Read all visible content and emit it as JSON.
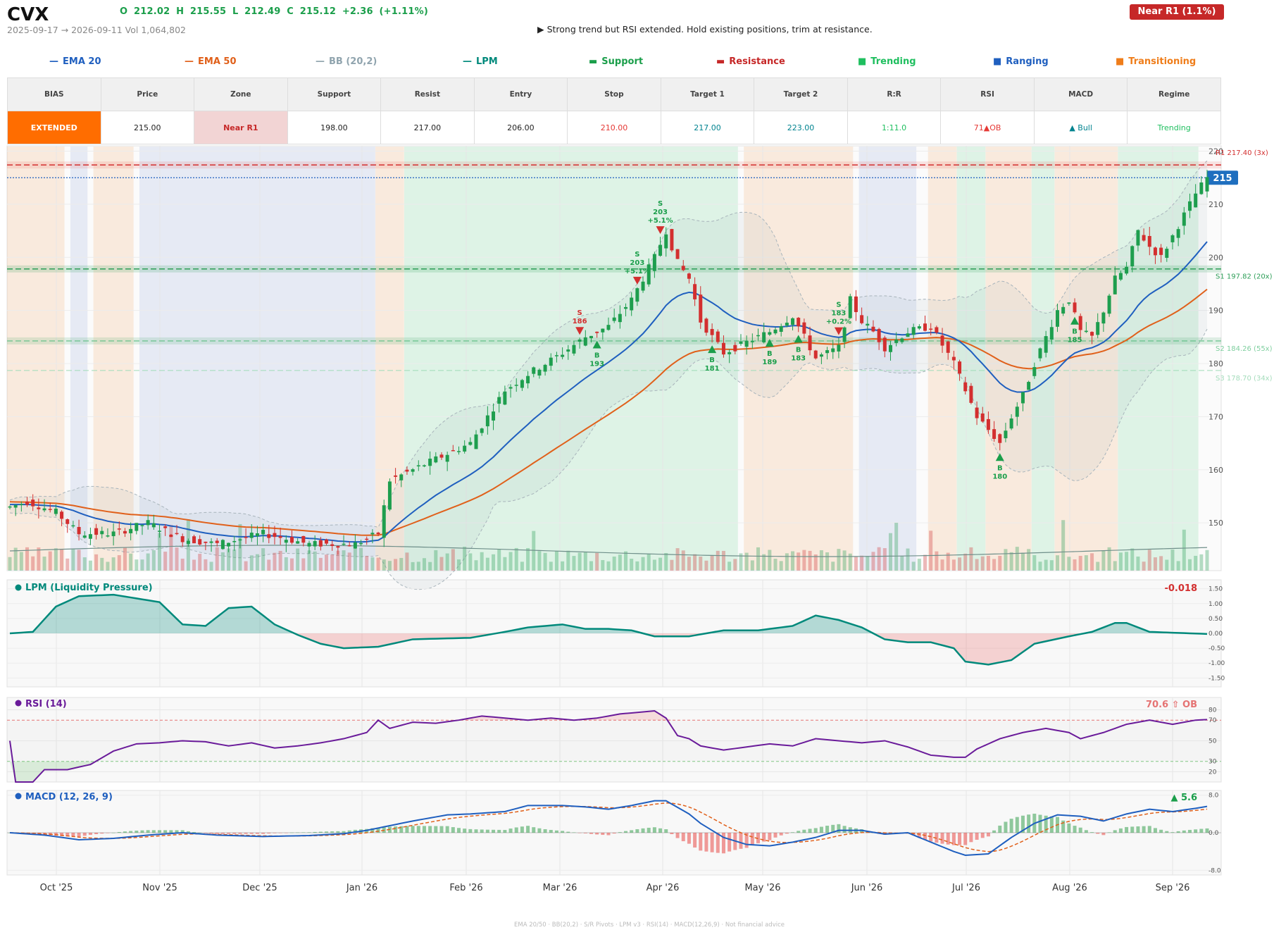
{
  "header": {
    "ticker": "CVX",
    "ohlc": "O 212.02   H 215.55   L 212.49   C 215.12   +2.36  (+1.11%)",
    "range": "2025-09-17 → 2026-09-11   Vol 1,064,802",
    "note": "▶  Strong trend but RSI extended. Hold existing positions, trim at resistance.",
    "zone_badge": "Near R1  (1.1%)"
  },
  "legend": [
    {
      "label": "EMA 20",
      "symbol": "—",
      "color": "#1f5fbf"
    },
    {
      "label": "EMA 50",
      "symbol": "—",
      "color": "#e0601a"
    },
    {
      "label": "BB (20,2)",
      "symbol": "—",
      "color": "#90a4ae"
    },
    {
      "label": "LPM",
      "symbol": "—",
      "color": "#00897b"
    },
    {
      "label": "Support",
      "symbol": "▬",
      "color": "#1a9e4a"
    },
    {
      "label": "Resistance",
      "symbol": "▬",
      "color": "#c62828"
    },
    {
      "label": "Trending",
      "symbol": "■",
      "color": "#1fbf5f"
    },
    {
      "label": "Ranging",
      "symbol": "■",
      "color": "#1f5fbf"
    },
    {
      "label": "Transitioning",
      "symbol": "■",
      "color": "#ef7d1a"
    }
  ],
  "table": {
    "headers": [
      "BIAS",
      "Price",
      "Zone",
      "Support",
      "Resist",
      "Entry",
      "Stop",
      "Target 1",
      "Target 2",
      "R:R",
      "RSI",
      "MACD",
      "Regime"
    ],
    "values": [
      "EXTENDED",
      "215.00",
      "Near R1",
      "198.00",
      "217.00",
      "206.00",
      "210.00",
      "217.00",
      "223.00",
      "1:11.0",
      "71▲OB",
      "▲ Bull",
      "Trending"
    ],
    "colors": [
      "#ffffff",
      "#222222",
      "#c62828",
      "#222222",
      "#222222",
      "#222222",
      "#e53935",
      "#00838f",
      "#00838f",
      "#1fbf5f",
      "#e53935",
      "#00838f",
      "#1fbf5f"
    ],
    "bg": [
      "#ff6d00",
      "#ffffff",
      "#f2d4d4",
      "#ffffff",
      "#ffffff",
      "#ffffff",
      "#ffffff",
      "#ffffff",
      "#ffffff",
      "#ffffff",
      "#ffffff",
      "#ffffff",
      "#ffffff"
    ]
  },
  "chart_data": {
    "type": "candlestick",
    "x_ticks": [
      "Oct '25",
      "Nov '25",
      "Dec '25",
      "Jan '26",
      "Feb '26",
      "Mar '26",
      "Apr '26",
      "May '26",
      "Jun '26",
      "Jul '26",
      "Aug '26",
      "Sep '26"
    ],
    "price": {
      "y_ticks": [
        150,
        160,
        170,
        180,
        190,
        200,
        210,
        220
      ],
      "ylim": [
        141,
        221
      ],
      "last_price_tag": "215",
      "anchors": [
        [
          0,
          153
        ],
        [
          3,
          154
        ],
        [
          8,
          152
        ],
        [
          12,
          148
        ],
        [
          18,
          148
        ],
        [
          24,
          150
        ],
        [
          30,
          147
        ],
        [
          36,
          146
        ],
        [
          44,
          148
        ],
        [
          52,
          146
        ],
        [
          56,
          146
        ],
        [
          60,
          146
        ],
        [
          64,
          148
        ],
        [
          66,
          158
        ],
        [
          70,
          160
        ],
        [
          74,
          162
        ],
        [
          80,
          165
        ],
        [
          86,
          175
        ],
        [
          90,
          178
        ],
        [
          96,
          182
        ],
        [
          100,
          185
        ],
        [
          104,
          187
        ],
        [
          108,
          192
        ],
        [
          112,
          200
        ],
        [
          114,
          205
        ],
        [
          116,
          199
        ],
        [
          118,
          196
        ],
        [
          120,
          188
        ],
        [
          124,
          182
        ],
        [
          128,
          184
        ],
        [
          132,
          186
        ],
        [
          136,
          189
        ],
        [
          140,
          181
        ],
        [
          144,
          183
        ],
        [
          146,
          192
        ],
        [
          148,
          188
        ],
        [
          150,
          186
        ],
        [
          152,
          183
        ],
        [
          156,
          186
        ],
        [
          160,
          187
        ],
        [
          164,
          180
        ],
        [
          166,
          175
        ],
        [
          168,
          170
        ],
        [
          172,
          165
        ],
        [
          174,
          170
        ],
        [
          176,
          174
        ],
        [
          178,
          180
        ],
        [
          182,
          190
        ],
        [
          184,
          192
        ],
        [
          186,
          186
        ],
        [
          188,
          185
        ],
        [
          190,
          190
        ],
        [
          192,
          196
        ],
        [
          194,
          198
        ],
        [
          196,
          205
        ],
        [
          198,
          202
        ],
        [
          200,
          200
        ],
        [
          203,
          206
        ],
        [
          206,
          212
        ],
        [
          208,
          215
        ]
      ]
    },
    "ema_seeds": {
      "ema20": 153.5,
      "ema50": 154.0
    },
    "resistance": [
      {
        "label": "R1 217.40 (3x)",
        "value": 217.4
      }
    ],
    "supports": [
      {
        "label": "S1 197.82 (20x)",
        "value": 197.82
      },
      {
        "label": "S2 184.26 (55x)",
        "value": 184.26
      },
      {
        "label": "S3 178.70 (34x)",
        "value": 178.7
      }
    ],
    "current_line": 215.0,
    "regimes": [
      {
        "start": 0,
        "end": 9,
        "type": "transitioning"
      },
      {
        "start": 11,
        "end": 13,
        "type": "ranging"
      },
      {
        "start": 15,
        "end": 21,
        "type": "transitioning"
      },
      {
        "start": 23,
        "end": 63,
        "type": "ranging"
      },
      {
        "start": 64,
        "end": 68,
        "type": "transitioning"
      },
      {
        "start": 69,
        "end": 126,
        "type": "trending"
      },
      {
        "start": 128,
        "end": 146,
        "type": "transitioning"
      },
      {
        "start": 148,
        "end": 157,
        "type": "ranging"
      },
      {
        "start": 160,
        "end": 164,
        "type": "transitioning"
      },
      {
        "start": 165,
        "end": 169,
        "type": "trending"
      },
      {
        "start": 170,
        "end": 177,
        "type": "transitioning"
      },
      {
        "start": 178,
        "end": 181,
        "type": "trending"
      },
      {
        "start": 182,
        "end": 192,
        "type": "transitioning"
      },
      {
        "start": 193,
        "end": 206,
        "type": "trending"
      }
    ],
    "signals": [
      {
        "i": 99,
        "side": "S",
        "lines": [
          "S",
          "186"
        ]
      },
      {
        "i": 102,
        "side": "B",
        "lines": [
          "B",
          "193"
        ]
      },
      {
        "i": 109,
        "side": "S",
        "lines": [
          "S",
          "203",
          "+5.1%"
        ]
      },
      {
        "i": 113,
        "side": "S",
        "lines": [
          "S",
          "203",
          "+5.1%"
        ]
      },
      {
        "i": 122,
        "side": "B",
        "lines": [
          "B",
          "181"
        ]
      },
      {
        "i": 132,
        "side": "B",
        "lines": [
          "B",
          "189"
        ]
      },
      {
        "i": 137,
        "side": "B",
        "lines": [
          "B",
          "183"
        ]
      },
      {
        "i": 144,
        "side": "S",
        "lines": [
          "S",
          "183",
          "+0.2%"
        ]
      },
      {
        "i": 172,
        "side": "B",
        "lines": [
          "B",
          "180"
        ]
      },
      {
        "i": 185,
        "side": "B",
        "lines": [
          "B",
          "185"
        ]
      }
    ],
    "lpm": {
      "title": "LPM (Liquidity Pressure)",
      "value_label": "-0.018",
      "y_ticks": [
        1.5,
        1.0,
        0.5,
        0.0,
        -0.5,
        -1.0,
        -1.5
      ],
      "ylim": [
        -1.8,
        1.8
      ],
      "anchors": [
        [
          0,
          0
        ],
        [
          4,
          0.05
        ],
        [
          8,
          0.9
        ],
        [
          12,
          1.25
        ],
        [
          18,
          1.3
        ],
        [
          26,
          1.05
        ],
        [
          30,
          0.3
        ],
        [
          34,
          0.25
        ],
        [
          38,
          0.85
        ],
        [
          42,
          0.9
        ],
        [
          46,
          0.3
        ],
        [
          50,
          -0.05
        ],
        [
          54,
          -0.35
        ],
        [
          58,
          -0.5
        ],
        [
          64,
          -0.45
        ],
        [
          70,
          -0.2
        ],
        [
          80,
          -0.15
        ],
        [
          86,
          0.05
        ],
        [
          90,
          0.2
        ],
        [
          96,
          0.3
        ],
        [
          100,
          0.15
        ],
        [
          104,
          0.15
        ],
        [
          108,
          0.1
        ],
        [
          112,
          -0.1
        ],
        [
          118,
          -0.1
        ],
        [
          124,
          0.1
        ],
        [
          130,
          0.1
        ],
        [
          136,
          0.25
        ],
        [
          140,
          0.6
        ],
        [
          144,
          0.45
        ],
        [
          148,
          0.2
        ],
        [
          152,
          -0.2
        ],
        [
          156,
          -0.3
        ],
        [
          160,
          -0.3
        ],
        [
          164,
          -0.5
        ],
        [
          166,
          -0.95
        ],
        [
          170,
          -1.05
        ],
        [
          174,
          -0.9
        ],
        [
          178,
          -0.35
        ],
        [
          184,
          -0.1
        ],
        [
          188,
          0.05
        ],
        [
          192,
          0.35
        ],
        [
          194,
          0.35
        ],
        [
          198,
          0.05
        ],
        [
          208,
          -0.02
        ]
      ]
    },
    "rsi": {
      "title": "RSI (14)",
      "value_label": "70.6 ⇧ OB",
      "y_ticks": [
        80,
        70,
        50,
        30,
        20
      ],
      "ylim": [
        10,
        92
      ],
      "anchors": [
        [
          0,
          50
        ],
        [
          1,
          10
        ],
        [
          4,
          10
        ],
        [
          6,
          22
        ],
        [
          10,
          22
        ],
        [
          14,
          27
        ],
        [
          18,
          40
        ],
        [
          22,
          47
        ],
        [
          26,
          48
        ],
        [
          30,
          50
        ],
        [
          34,
          49
        ],
        [
          38,
          45
        ],
        [
          42,
          48
        ],
        [
          46,
          43
        ],
        [
          50,
          45
        ],
        [
          54,
          48
        ],
        [
          58,
          52
        ],
        [
          62,
          58
        ],
        [
          64,
          70
        ],
        [
          66,
          62
        ],
        [
          70,
          68
        ],
        [
          74,
          67
        ],
        [
          78,
          70
        ],
        [
          82,
          74
        ],
        [
          86,
          72
        ],
        [
          90,
          70
        ],
        [
          94,
          72
        ],
        [
          98,
          70
        ],
        [
          102,
          72
        ],
        [
          106,
          76
        ],
        [
          110,
          78
        ],
        [
          112,
          79
        ],
        [
          114,
          72
        ],
        [
          116,
          55
        ],
        [
          118,
          52
        ],
        [
          120,
          45
        ],
        [
          124,
          41
        ],
        [
          128,
          44
        ],
        [
          132,
          47
        ],
        [
          136,
          45
        ],
        [
          140,
          52
        ],
        [
          144,
          50
        ],
        [
          148,
          48
        ],
        [
          152,
          50
        ],
        [
          156,
          44
        ],
        [
          160,
          36
        ],
        [
          164,
          34
        ],
        [
          166,
          34
        ],
        [
          168,
          42
        ],
        [
          172,
          52
        ],
        [
          176,
          58
        ],
        [
          180,
          62
        ],
        [
          184,
          58
        ],
        [
          186,
          52
        ],
        [
          190,
          58
        ],
        [
          194,
          66
        ],
        [
          198,
          70
        ],
        [
          202,
          66
        ],
        [
          206,
          70
        ],
        [
          208,
          70.6
        ]
      ]
    },
    "macd": {
      "title": "MACD (12, 26, 9)",
      "value_label": "▲ 5.6",
      "y_ticks": [
        8.0,
        0.0,
        -8.0
      ],
      "ylim": [
        -9,
        9
      ],
      "anchors": [
        [
          0,
          0
        ],
        [
          6,
          -0.5
        ],
        [
          12,
          -1.5
        ],
        [
          18,
          -1.2
        ],
        [
          24,
          -0.5
        ],
        [
          30,
          0
        ],
        [
          36,
          -0.5
        ],
        [
          44,
          -0.8
        ],
        [
          52,
          -0.6
        ],
        [
          58,
          -0.2
        ],
        [
          62,
          0.5
        ],
        [
          66,
          1.5
        ],
        [
          70,
          2.5
        ],
        [
          76,
          3.8
        ],
        [
          80,
          4.0
        ],
        [
          86,
          4.5
        ],
        [
          90,
          5.8
        ],
        [
          96,
          5.8
        ],
        [
          100,
          5.5
        ],
        [
          104,
          5.0
        ],
        [
          108,
          5.8
        ],
        [
          112,
          6.8
        ],
        [
          114,
          6.8
        ],
        [
          118,
          4.0
        ],
        [
          120,
          2.0
        ],
        [
          124,
          -1.0
        ],
        [
          128,
          -2.5
        ],
        [
          132,
          -2.8
        ],
        [
          136,
          -2.0
        ],
        [
          140,
          -1.0
        ],
        [
          144,
          0.5
        ],
        [
          148,
          0.5
        ],
        [
          152,
          -0.3
        ],
        [
          156,
          0
        ],
        [
          160,
          -2.0
        ],
        [
          164,
          -4.0
        ],
        [
          166,
          -4.8
        ],
        [
          170,
          -4.5
        ],
        [
          174,
          -1.0
        ],
        [
          178,
          2.0
        ],
        [
          182,
          3.8
        ],
        [
          186,
          3.5
        ],
        [
          190,
          2.5
        ],
        [
          194,
          4.0
        ],
        [
          198,
          5.0
        ],
        [
          202,
          4.5
        ],
        [
          206,
          5.2
        ],
        [
          208,
          5.6
        ]
      ]
    },
    "footer": "EMA 20/50  ·  BB(20,2)  ·  S/R Pivots  ·  LPM v3  ·  RSI(14)  ·  MACD(12,26,9)  ·  Not financial advice"
  }
}
